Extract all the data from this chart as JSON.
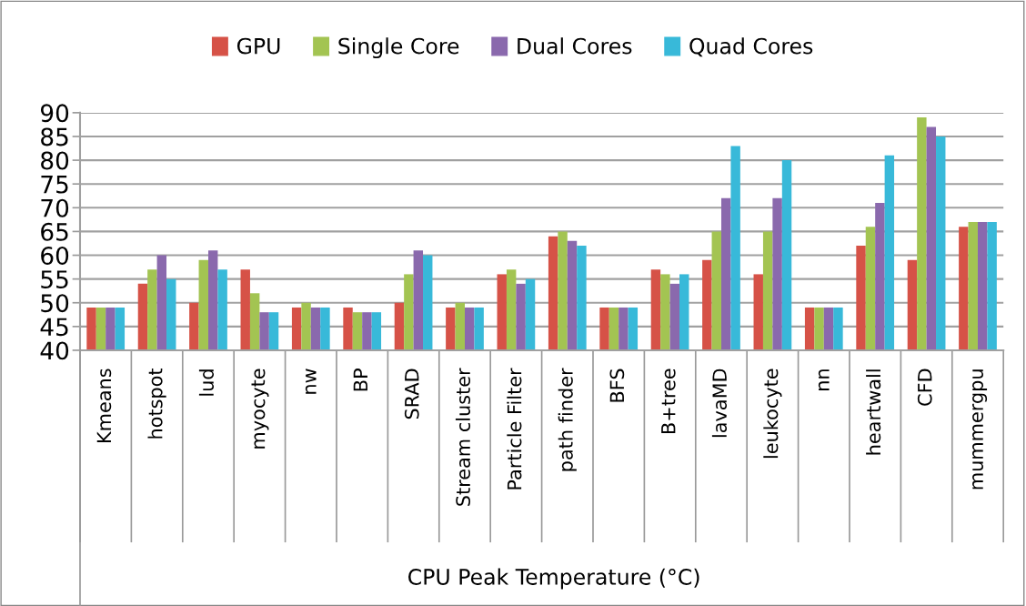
{
  "chart_data": {
    "type": "bar",
    "xlabel": "CPU Peak Temperature (°C)",
    "categories": [
      "Kmeans",
      "hotspot",
      "lud",
      "myocyte",
      "nw",
      "BP",
      "SRAD",
      "Stream cluster",
      "Particle Filter",
      "path finder",
      "BFS",
      "B+tree",
      "lavaMD",
      "leukocyte",
      "nn",
      "heartwall",
      "CFD",
      "mummergpu"
    ],
    "series": [
      {
        "name": "GPU",
        "color": "#d65247",
        "values": [
          49,
          54,
          50,
          57,
          49,
          49,
          50,
          49,
          56,
          64,
          49,
          57,
          59,
          56,
          49,
          62,
          59,
          66
        ]
      },
      {
        "name": "Single Core",
        "color": "#a3c452",
        "values": [
          49,
          57,
          59,
          52,
          50,
          48,
          56,
          50,
          57,
          65,
          49,
          56,
          65,
          65,
          49,
          66,
          89,
          67
        ]
      },
      {
        "name": "Dual Cores",
        "color": "#8a69ad",
        "values": [
          49,
          60,
          61,
          48,
          49,
          48,
          61,
          49,
          54,
          63,
          49,
          54,
          72,
          72,
          49,
          71,
          87,
          67
        ]
      },
      {
        "name": "Quad Cores",
        "color": "#38b9d9",
        "values": [
          49,
          55,
          57,
          48,
          49,
          48,
          60,
          49,
          55,
          62,
          49,
          56,
          83,
          80,
          49,
          81,
          85,
          67
        ]
      }
    ],
    "ylim": [
      40,
      90
    ],
    "yticks": [
      40,
      45,
      50,
      55,
      60,
      65,
      70,
      75,
      80,
      85,
      90
    ],
    "grid": "y",
    "legend": "top"
  }
}
